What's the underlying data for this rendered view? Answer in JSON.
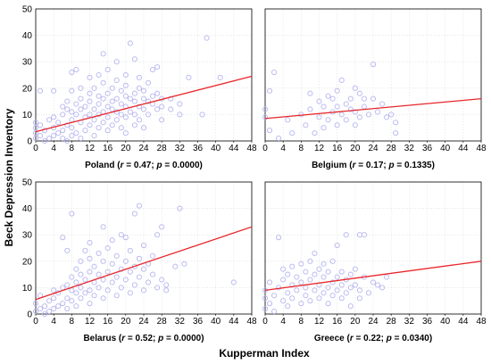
{
  "figure": {
    "xlabel": "Kupperman Index",
    "ylabel": "Beck Depression Inventory"
  },
  "chart_data": [
    {
      "type": "scatter",
      "caption": {
        "country": "Poland",
        "r": "0.47",
        "p": "0.0000"
      },
      "xlim": [
        0,
        48
      ],
      "ylim": [
        0,
        50
      ],
      "xticks": [
        0,
        4,
        8,
        12,
        16,
        20,
        24,
        28,
        32,
        36,
        40,
        44,
        48
      ],
      "yticks": [
        0,
        10,
        20,
        30,
        40,
        50
      ],
      "grid": true,
      "regression": {
        "x": [
          0,
          48
        ],
        "y": [
          3.5,
          24.5
        ]
      },
      "colors": {
        "points": "#b6b6f0",
        "line": "#e8262b"
      },
      "points": [
        [
          0,
          1
        ],
        [
          0,
          3
        ],
        [
          0,
          5
        ],
        [
          0,
          7
        ],
        [
          1,
          2
        ],
        [
          1,
          19
        ],
        [
          1,
          6
        ],
        [
          2,
          0
        ],
        [
          2,
          4
        ],
        [
          3,
          1
        ],
        [
          3,
          8
        ],
        [
          4,
          2
        ],
        [
          4,
          5
        ],
        [
          4,
          9
        ],
        [
          4,
          19
        ],
        [
          5,
          3
        ],
        [
          5,
          7
        ],
        [
          6,
          1
        ],
        [
          6,
          4
        ],
        [
          6,
          10
        ],
        [
          6,
          13
        ],
        [
          7,
          0
        ],
        [
          7,
          6
        ],
        [
          7,
          12
        ],
        [
          7,
          15
        ],
        [
          8,
          2
        ],
        [
          8,
          5
        ],
        [
          8,
          8
        ],
        [
          8,
          11
        ],
        [
          8,
          19
        ],
        [
          8,
          26
        ],
        [
          9,
          3
        ],
        [
          9,
          10
        ],
        [
          9,
          14
        ],
        [
          9,
          27
        ],
        [
          10,
          1
        ],
        [
          10,
          7
        ],
        [
          10,
          12
        ],
        [
          10,
          16
        ],
        [
          10,
          20
        ],
        [
          11,
          4
        ],
        [
          11,
          9
        ],
        [
          11,
          13
        ],
        [
          12,
          6
        ],
        [
          12,
          10
        ],
        [
          12,
          15
        ],
        [
          12,
          18
        ],
        [
          12,
          24
        ],
        [
          13,
          2
        ],
        [
          13,
          8
        ],
        [
          13,
          12
        ],
        [
          13,
          20
        ],
        [
          14,
          5
        ],
        [
          14,
          10
        ],
        [
          14,
          14
        ],
        [
          14,
          17
        ],
        [
          14,
          25
        ],
        [
          15,
          7
        ],
        [
          15,
          11
        ],
        [
          15,
          16
        ],
        [
          15,
          22
        ],
        [
          15,
          33
        ],
        [
          16,
          4
        ],
        [
          16,
          9
        ],
        [
          16,
          13
        ],
        [
          16,
          18
        ],
        [
          16,
          27
        ],
        [
          17,
          6
        ],
        [
          17,
          12
        ],
        [
          17,
          15
        ],
        [
          17,
          20
        ],
        [
          18,
          8
        ],
        [
          18,
          11
        ],
        [
          18,
          16
        ],
        [
          18,
          23
        ],
        [
          18,
          30
        ],
        [
          19,
          5
        ],
        [
          19,
          10
        ],
        [
          19,
          14
        ],
        [
          19,
          19
        ],
        [
          20,
          3
        ],
        [
          20,
          9
        ],
        [
          20,
          13
        ],
        [
          20,
          17
        ],
        [
          20,
          21
        ],
        [
          20,
          25
        ],
        [
          21,
          11
        ],
        [
          21,
          16
        ],
        [
          21,
          37
        ],
        [
          22,
          6
        ],
        [
          22,
          10
        ],
        [
          22,
          15
        ],
        [
          22,
          18
        ],
        [
          22,
          31
        ],
        [
          23,
          8
        ],
        [
          23,
          13
        ],
        [
          23,
          20
        ],
        [
          23,
          24
        ],
        [
          24,
          5
        ],
        [
          24,
          12
        ],
        [
          24,
          16
        ],
        [
          24,
          19
        ],
        [
          25,
          10
        ],
        [
          25,
          15
        ],
        [
          25,
          22
        ],
        [
          26,
          14
        ],
        [
          26,
          17
        ],
        [
          26,
          27
        ],
        [
          27,
          12
        ],
        [
          27,
          18
        ],
        [
          27,
          28
        ],
        [
          28,
          8
        ],
        [
          28,
          13
        ],
        [
          28,
          16
        ],
        [
          30,
          12
        ],
        [
          30,
          16
        ],
        [
          32,
          10
        ],
        [
          32,
          14
        ],
        [
          34,
          24
        ],
        [
          37,
          10
        ],
        [
          38,
          39
        ],
        [
          41,
          24
        ]
      ]
    },
    {
      "type": "scatter",
      "caption": {
        "country": "Belgium",
        "r": "0.17",
        "p": "0.1335"
      },
      "xlim": [
        0,
        48
      ],
      "ylim": [
        0,
        50
      ],
      "xticks": [
        0,
        4,
        8,
        12,
        16,
        20,
        24,
        28,
        32,
        36,
        40,
        44,
        48
      ],
      "yticks": [
        0,
        10,
        20,
        30,
        40,
        50
      ],
      "grid": true,
      "regression": {
        "x": [
          0,
          48
        ],
        "y": [
          8.5,
          16.0
        ]
      },
      "colors": {
        "points": "#b6b6f0",
        "line": "#e8262b"
      },
      "points": [
        [
          0,
          12
        ],
        [
          0,
          9
        ],
        [
          1,
          4
        ],
        [
          1,
          19
        ],
        [
          2,
          26
        ],
        [
          3,
          1
        ],
        [
          5,
          8
        ],
        [
          6,
          3
        ],
        [
          8,
          10
        ],
        [
          9,
          6
        ],
        [
          10,
          12
        ],
        [
          10,
          18
        ],
        [
          11,
          3
        ],
        [
          12,
          9
        ],
        [
          12,
          15
        ],
        [
          13,
          5
        ],
        [
          13,
          13
        ],
        [
          14,
          8
        ],
        [
          14,
          17
        ],
        [
          15,
          11
        ],
        [
          15,
          16
        ],
        [
          16,
          6
        ],
        [
          16,
          13
        ],
        [
          16,
          19
        ],
        [
          17,
          23
        ],
        [
          17,
          10
        ],
        [
          18,
          14
        ],
        [
          18,
          8
        ],
        [
          19,
          12
        ],
        [
          19,
          16
        ],
        [
          20,
          11
        ],
        [
          20,
          6
        ],
        [
          20,
          20
        ],
        [
          21,
          18
        ],
        [
          21,
          9
        ],
        [
          22,
          13
        ],
        [
          22,
          16
        ],
        [
          23,
          10
        ],
        [
          24,
          16
        ],
        [
          24,
          29
        ],
        [
          25,
          11
        ],
        [
          26,
          14
        ],
        [
          27,
          9
        ],
        [
          28,
          10
        ],
        [
          29,
          3
        ],
        [
          29,
          7
        ]
      ]
    },
    {
      "type": "scatter",
      "caption": {
        "country": "Belarus",
        "r": "0.52",
        "p": "0.0000"
      },
      "xlim": [
        0,
        48
      ],
      "ylim": [
        0,
        50
      ],
      "xticks": [
        0,
        4,
        8,
        12,
        16,
        20,
        24,
        28,
        32,
        36,
        40,
        44,
        48
      ],
      "yticks": [
        0,
        10,
        20,
        30,
        40,
        50
      ],
      "grid": true,
      "regression": {
        "x": [
          0,
          48
        ],
        "y": [
          5.5,
          33.0
        ]
      },
      "colors": {
        "points": "#b6b6f0",
        "line": "#e8262b"
      },
      "points": [
        [
          0,
          1
        ],
        [
          0,
          4
        ],
        [
          1,
          2
        ],
        [
          1,
          7
        ],
        [
          2,
          0
        ],
        [
          2,
          3
        ],
        [
          3,
          1
        ],
        [
          3,
          5
        ],
        [
          4,
          2
        ],
        [
          4,
          6
        ],
        [
          4,
          9
        ],
        [
          5,
          3
        ],
        [
          5,
          8
        ],
        [
          6,
          4
        ],
        [
          6,
          10
        ],
        [
          6,
          29
        ],
        [
          7,
          2
        ],
        [
          7,
          6
        ],
        [
          7,
          11
        ],
        [
          7,
          24
        ],
        [
          8,
          5
        ],
        [
          8,
          9
        ],
        [
          8,
          14
        ],
        [
          8,
          38
        ],
        [
          9,
          3
        ],
        [
          9,
          8
        ],
        [
          9,
          12
        ],
        [
          9,
          17
        ],
        [
          10,
          6
        ],
        [
          10,
          10
        ],
        [
          10,
          15
        ],
        [
          10,
          20
        ],
        [
          11,
          8
        ],
        [
          11,
          13
        ],
        [
          11,
          24
        ],
        [
          12,
          4
        ],
        [
          12,
          9
        ],
        [
          12,
          16
        ],
        [
          12,
          21
        ],
        [
          12,
          27
        ],
        [
          13,
          7
        ],
        [
          13,
          12
        ],
        [
          13,
          18
        ],
        [
          14,
          10
        ],
        [
          14,
          15
        ],
        [
          14,
          23
        ],
        [
          15,
          6
        ],
        [
          15,
          13
        ],
        [
          15,
          20
        ],
        [
          15,
          33
        ],
        [
          16,
          9
        ],
        [
          16,
          16
        ],
        [
          16,
          25
        ],
        [
          17,
          12
        ],
        [
          17,
          19
        ],
        [
          17,
          28
        ],
        [
          18,
          7
        ],
        [
          18,
          14
        ],
        [
          18,
          22
        ],
        [
          19,
          10
        ],
        [
          19,
          17
        ],
        [
          19,
          30
        ],
        [
          20,
          13
        ],
        [
          20,
          20
        ],
        [
          20,
          29
        ],
        [
          21,
          8
        ],
        [
          21,
          16
        ],
        [
          21,
          24
        ],
        [
          22,
          11
        ],
        [
          22,
          18
        ],
        [
          22,
          38
        ],
        [
          23,
          14
        ],
        [
          23,
          21
        ],
        [
          23,
          41
        ],
        [
          24,
          9
        ],
        [
          24,
          17
        ],
        [
          24,
          26
        ],
        [
          25,
          12
        ],
        [
          25,
          19
        ],
        [
          26,
          15
        ],
        [
          26,
          22
        ],
        [
          27,
          10
        ],
        [
          27,
          30
        ],
        [
          28,
          13
        ],
        [
          28,
          33
        ],
        [
          29,
          9
        ],
        [
          29,
          11
        ],
        [
          31,
          18
        ],
        [
          32,
          40
        ],
        [
          33,
          19
        ],
        [
          44,
          12
        ]
      ]
    },
    {
      "type": "scatter",
      "caption": {
        "country": "Greece",
        "r": "0.22",
        "p": "0.0340"
      },
      "xlim": [
        0,
        48
      ],
      "ylim": [
        0,
        50
      ],
      "xticks": [
        0,
        4,
        8,
        12,
        16,
        20,
        24,
        28,
        32,
        36,
        40,
        44,
        48
      ],
      "yticks": [
        0,
        10,
        20,
        30,
        40,
        50
      ],
      "grid": true,
      "regression": {
        "x": [
          0,
          48
        ],
        "y": [
          9.0,
          20.0
        ]
      },
      "colors": {
        "points": "#b6b6f0",
        "line": "#e8262b"
      },
      "points": [
        [
          0,
          2
        ],
        [
          0,
          6
        ],
        [
          0,
          9
        ],
        [
          1,
          4
        ],
        [
          1,
          12
        ],
        [
          2,
          7
        ],
        [
          2,
          1
        ],
        [
          3,
          10
        ],
        [
          3,
          29
        ],
        [
          4,
          5
        ],
        [
          4,
          13
        ],
        [
          4,
          17
        ],
        [
          5,
          8
        ],
        [
          5,
          3
        ],
        [
          5,
          15
        ],
        [
          6,
          11
        ],
        [
          6,
          18
        ],
        [
          6,
          6
        ],
        [
          7,
          9
        ],
        [
          7,
          14
        ],
        [
          8,
          4
        ],
        [
          8,
          12
        ],
        [
          8,
          19
        ],
        [
          9,
          7
        ],
        [
          9,
          16
        ],
        [
          9,
          10
        ],
        [
          10,
          13
        ],
        [
          10,
          20
        ],
        [
          10,
          5
        ],
        [
          11,
          9
        ],
        [
          11,
          15
        ],
        [
          11,
          23
        ],
        [
          12,
          11
        ],
        [
          12,
          6
        ],
        [
          12,
          17
        ],
        [
          13,
          8
        ],
        [
          13,
          14
        ],
        [
          13,
          19
        ],
        [
          14,
          10
        ],
        [
          14,
          4
        ],
        [
          14,
          16
        ],
        [
          15,
          12
        ],
        [
          15,
          7
        ],
        [
          15,
          20
        ],
        [
          16,
          9
        ],
        [
          16,
          14
        ],
        [
          16,
          26
        ],
        [
          17,
          11
        ],
        [
          17,
          16
        ],
        [
          17,
          6
        ],
        [
          18,
          8
        ],
        [
          18,
          13
        ],
        [
          18,
          30
        ],
        [
          19,
          10
        ],
        [
          19,
          15
        ],
        [
          19,
          3
        ],
        [
          20,
          11
        ],
        [
          20,
          17
        ],
        [
          21,
          9
        ],
        [
          21,
          6
        ],
        [
          21,
          30
        ],
        [
          22,
          14
        ],
        [
          22,
          30
        ],
        [
          23,
          8
        ],
        [
          24,
          12
        ],
        [
          25,
          11
        ],
        [
          26,
          10
        ],
        [
          27,
          14
        ]
      ]
    }
  ]
}
